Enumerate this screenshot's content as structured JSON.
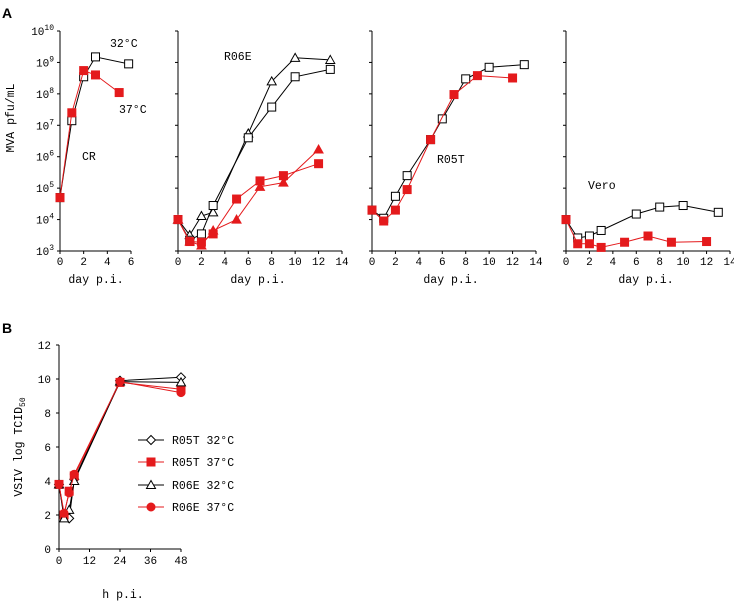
{
  "chart_data": [
    {
      "type": "line",
      "panel": "A",
      "ylabel": "MVA pfu/mL",
      "xlabel": "day p.i.",
      "yscale": "log",
      "ylim": [
        1000,
        10000000000
      ],
      "yticks": [
        3,
        4,
        5,
        6,
        7,
        8,
        9,
        10
      ],
      "xlim": [
        0,
        6
      ],
      "xticks": [
        "0",
        "2",
        "4",
        "6"
      ],
      "annotation": "CR",
      "series": [
        {
          "name": "32°C",
          "color": "#000000",
          "marker": "square-open",
          "x": [
            0,
            1,
            2,
            3,
            5.8
          ],
          "y": [
            50000,
            14000000,
            350000000,
            1500000000,
            900000000
          ]
        },
        {
          "name": "37°C",
          "color": "#e41a1c",
          "marker": "square-filled",
          "x": [
            0,
            1,
            2,
            3,
            5
          ],
          "y": [
            50000,
            25000000,
            550000000,
            400000000,
            110000000
          ]
        }
      ]
    },
    {
      "type": "line",
      "xlabel": "day p.i.",
      "yscale": "log",
      "ylim": [
        1000,
        10000000000
      ],
      "xlim": [
        0,
        14
      ],
      "xticks": [
        "0",
        "2",
        "4",
        "6",
        "8",
        "10",
        "12",
        "14"
      ],
      "annotation": "R06E",
      "series": [
        {
          "color": "#000000",
          "marker": "triangle-open",
          "x": [
            0,
            1,
            2,
            3,
            6,
            8,
            10,
            13
          ],
          "y": [
            10000,
            3200,
            13000,
            17000,
            5500000,
            250000000,
            1400000000,
            1200000000
          ]
        },
        {
          "color": "#000000",
          "marker": "square-open",
          "x": [
            0,
            1,
            2,
            3,
            6,
            8,
            10,
            13
          ],
          "y": [
            10000,
            2200,
            3500,
            28000,
            4000000,
            38000000,
            350000000,
            600000000
          ]
        },
        {
          "color": "#e41a1c",
          "marker": "triangle-filled",
          "x": [
            0,
            1,
            2,
            3,
            5,
            7,
            9,
            12
          ],
          "y": [
            10000,
            2000,
            1500,
            4500,
            10000,
            110000,
            150000,
            1700000
          ]
        },
        {
          "color": "#e41a1c",
          "marker": "square-filled",
          "x": [
            0,
            1,
            2,
            3,
            5,
            7,
            9,
            12
          ],
          "y": [
            10000,
            2000,
            1900,
            3500,
            45000,
            170000,
            250000,
            600000
          ]
        }
      ]
    },
    {
      "type": "line",
      "xlabel": "day p.i.",
      "yscale": "log",
      "ylim": [
        1000,
        10000000000
      ],
      "xlim": [
        0,
        14
      ],
      "xticks": [
        "0",
        "2",
        "4",
        "6",
        "8",
        "10",
        "12",
        "14"
      ],
      "annotation": "R05T",
      "series": [
        {
          "color": "#000000",
          "marker": "square-open",
          "x": [
            0,
            1,
            2,
            3,
            5,
            6,
            8,
            10,
            13
          ],
          "y": [
            20000,
            11000,
            55000,
            250000,
            3500000,
            16000000,
            300000000,
            700000000,
            850000000
          ]
        },
        {
          "color": "#e41a1c",
          "marker": "square-filled",
          "x": [
            0,
            1,
            2,
            3,
            5,
            7,
            9,
            12
          ],
          "y": [
            20000,
            9000,
            20000,
            90000,
            3500000,
            95000000,
            380000000,
            320000000
          ]
        }
      ]
    },
    {
      "type": "line",
      "xlabel": "day p.i.",
      "yscale": "log",
      "ylim": [
        1000,
        10000000000
      ],
      "xlim": [
        0,
        14
      ],
      "xticks": [
        "0",
        "2",
        "4",
        "6",
        "8",
        "10",
        "12",
        "14"
      ],
      "annotation": "Vero",
      "series": [
        {
          "color": "#000000",
          "marker": "square-open",
          "x": [
            0,
            1,
            2,
            3,
            6,
            8,
            10,
            13
          ],
          "y": [
            10000,
            2600,
            3000,
            4500,
            15000,
            25000,
            28000,
            17000
          ]
        },
        {
          "color": "#e41a1c",
          "marker": "square-filled",
          "x": [
            0,
            1,
            2,
            3,
            5,
            7,
            9,
            12
          ],
          "y": [
            10000,
            1700,
            1700,
            1300,
            1900,
            3000,
            1900,
            2000
          ]
        }
      ]
    },
    {
      "type": "line",
      "panel": "B",
      "ylabel": "VSIV log TCID50",
      "xlabel": "h p.i.",
      "ylim": [
        0,
        12
      ],
      "yticks": [
        "0",
        "2",
        "4",
        "6",
        "8",
        "10",
        "12"
      ],
      "xlim": [
        0,
        48
      ],
      "xticks": [
        "0",
        "12",
        "24",
        "36",
        "48"
      ],
      "legend_position": "right",
      "series": [
        {
          "name": "R05T 32°C",
          "color": "#000000",
          "marker": "diamond-open",
          "x": [
            0,
            2,
            4,
            6,
            24,
            48
          ],
          "y": [
            3.8,
            1.9,
            1.8,
            4.1,
            9.9,
            10.1
          ]
        },
        {
          "name": "R05T 37°C",
          "color": "#e41a1c",
          "marker": "square-filled",
          "x": [
            0,
            2,
            4,
            6,
            24,
            48
          ],
          "y": [
            3.8,
            2.0,
            3.4,
            4.3,
            9.8,
            9.4
          ]
        },
        {
          "name": "R06E 32°C",
          "color": "#000000",
          "marker": "triangle-open",
          "x": [
            0,
            2,
            4,
            6,
            24,
            48
          ],
          "y": [
            3.8,
            1.8,
            2.3,
            4.0,
            9.85,
            9.8
          ]
        },
        {
          "name": "R06E 37°C",
          "color": "#e41a1c",
          "marker": "circle-filled",
          "x": [
            0,
            2,
            4,
            6,
            24,
            48
          ],
          "y": [
            3.8,
            2.1,
            3.3,
            4.4,
            9.85,
            9.2
          ]
        }
      ]
    }
  ],
  "labels": {
    "panel_a": "A",
    "panel_b": "B",
    "a_ylabel": "MVA pfu/mL",
    "a_xlabel": "day p.i.",
    "cr_32": "32°C",
    "cr_37": "37°C",
    "cr_name": "CR",
    "r06e_name": "R06E",
    "r05t_name": "R05T",
    "vero_name": "Vero",
    "b_ylabel_main": "VSIV log TCID",
    "b_ylabel_sub": "50",
    "b_xlabel": "h p.i.",
    "legend": [
      "R05T 32°C",
      "R05T 37°C",
      "R06E 32°C",
      "R06E 37°C"
    ]
  }
}
